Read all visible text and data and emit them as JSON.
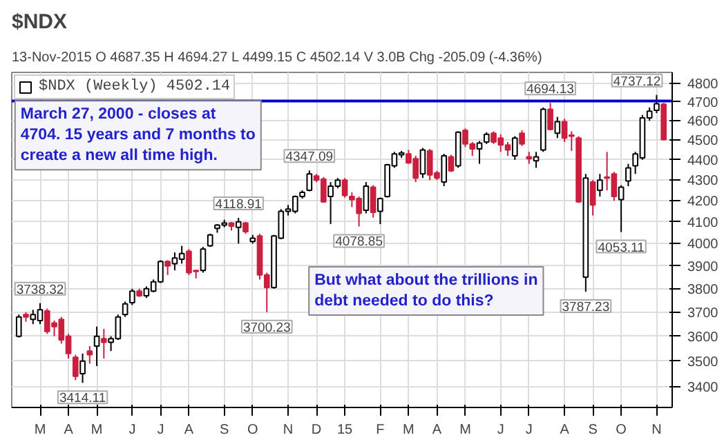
{
  "chart_data": {
    "type": "candlestick",
    "title": "$NDX",
    "subtitle": "13-Nov-2015   O 4687.35  H 4694.27  L 4499.15  C 4502.14  V 3.0B  Chg -205.09 (-4.36%)",
    "categories": [
      null,
      null,
      null,
      "M",
      null,
      null,
      null,
      "A",
      null,
      null,
      null,
      "M",
      null,
      null,
      null,
      null,
      "J",
      null,
      null,
      null,
      "J",
      null,
      null,
      null,
      "A",
      null,
      null,
      null,
      null,
      "S",
      null,
      null,
      null,
      "O",
      null,
      null,
      null,
      null,
      "N",
      null,
      null,
      null,
      "D",
      null,
      null,
      null,
      "15",
      null,
      null,
      null,
      null,
      "F",
      null,
      null,
      null,
      "M",
      null,
      null,
      null,
      "A",
      null,
      null,
      null,
      "M",
      null,
      null,
      null,
      null,
      "J",
      null,
      null,
      null,
      "J",
      null,
      null,
      null,
      null,
      "A",
      null,
      null,
      null,
      "S",
      null,
      null,
      null,
      "O",
      null,
      null,
      null,
      null,
      "N",
      null
    ],
    "series": [
      {
        "name": "$NDX (Weekly) 4502.14",
        "colors": [
          "#ffffff",
          "#cc1f3f",
          "#ffffff",
          "#ffffff",
          "#cc1f3f",
          "#cc1f3f",
          "#cc1f3f",
          "#cc1f3f",
          "#cc1f3f",
          "#ffffff",
          "#cc1f3f",
          "#ffffff",
          "#cc1f3f",
          "#ffffff",
          "#ffffff",
          "#ffffff",
          "#ffffff",
          "#cc1f3f",
          "#ffffff",
          "#ffffff",
          "#ffffff",
          "#cc1f3f",
          "#ffffff",
          "#ffffff",
          "#cc1f3f",
          "#cc1f3f",
          "#ffffff",
          "#ffffff",
          "#ffffff",
          "#ffffff",
          "#cc1f3f",
          "#ffffff",
          "#cc1f3f",
          "#ffffff",
          "#cc1f3f",
          "#cc1f3f",
          "#ffffff",
          "#ffffff",
          "#ffffff",
          "#ffffff",
          "#ffffff",
          "#ffffff",
          "#cc1f3f",
          "#cc1f3f",
          "#ffffff",
          "#ffffff",
          "#cc1f3f",
          "#cc1f3f",
          "#cc1f3f",
          "#ffffff",
          "#cc1f3f",
          "#ffffff",
          "#ffffff",
          "#ffffff",
          "#ffffff",
          "#cc1f3f",
          "#cc1f3f",
          "#ffffff",
          "#cc1f3f",
          "#cc1f3f",
          "#ffffff",
          "#cc1f3f",
          "#ffffff",
          "#cc1f3f",
          "#cc1f3f",
          "#ffffff",
          "#ffffff",
          "#cc1f3f",
          "#cc1f3f",
          "#cc1f3f",
          "#ffffff",
          "#cc1f3f",
          "#cc1f3f",
          "#ffffff",
          "#ffffff",
          "#cc1f3f",
          "#ffffff",
          "#cc1f3f",
          "#cc1f3f",
          "#cc1f3f",
          "#ffffff",
          "#cc1f3f",
          "#ffffff",
          "#cc1f3f",
          "#cc1f3f",
          "#ffffff",
          "#ffffff",
          "#ffffff",
          "#ffffff",
          "#ffffff",
          "#ffffff",
          "#cc1f3f"
        ],
        "ohlc": [
          [
            3600,
            3690,
            3595,
            3680
          ],
          [
            3690,
            3700,
            3660,
            3680
          ],
          [
            3670,
            3710,
            3650,
            3690
          ],
          [
            3665,
            3738.32,
            3650,
            3710
          ],
          [
            3705,
            3715,
            3610,
            3620
          ],
          [
            3655,
            3665,
            3600,
            3640
          ],
          [
            3670,
            3680,
            3570,
            3585
          ],
          [
            3600,
            3610,
            3510,
            3530
          ],
          [
            3515,
            3525,
            3425,
            3440
          ],
          [
            3450,
            3530,
            3414.11,
            3500
          ],
          [
            3540,
            3560,
            3490,
            3525
          ],
          [
            3560,
            3640,
            3480,
            3600
          ],
          [
            3590,
            3630,
            3510,
            3575
          ],
          [
            3575,
            3600,
            3540,
            3590
          ],
          [
            3590,
            3690,
            3585,
            3680
          ],
          [
            3690,
            3745,
            3680,
            3735
          ],
          [
            3740,
            3800,
            3730,
            3790
          ],
          [
            3790,
            3800,
            3765,
            3770
          ],
          [
            3770,
            3810,
            3760,
            3800
          ],
          [
            3790,
            3840,
            3785,
            3830
          ],
          [
            3830,
            3925,
            3825,
            3920
          ],
          [
            3920,
            3925,
            3860,
            3900
          ],
          [
            3910,
            3960,
            3880,
            3935
          ],
          [
            3930,
            3990,
            3910,
            3955
          ],
          [
            3965,
            3975,
            3860,
            3870
          ],
          [
            3880,
            3880,
            3845,
            3875
          ],
          [
            3880,
            3985,
            3870,
            3975
          ],
          [
            3990,
            4045,
            3985,
            4040
          ],
          [
            4070,
            4090,
            4050,
            4085
          ],
          [
            4085,
            4110,
            4075,
            4095
          ],
          [
            4095,
            4100,
            4060,
            4080
          ],
          [
            4075,
            4118.91,
            4000,
            4100
          ],
          [
            4095,
            4100,
            4045,
            4055
          ],
          [
            4010,
            4040,
            4000,
            4025
          ],
          [
            4035,
            4045,
            3840,
            3860
          ],
          [
            3860,
            3870,
            3700.23,
            3805
          ],
          [
            3805,
            4040,
            3800,
            4035
          ],
          [
            4025,
            4160,
            4020,
            4150
          ],
          [
            4150,
            4180,
            4130,
            4160
          ],
          [
            4150,
            4225,
            4140,
            4220
          ],
          [
            4220,
            4250,
            4210,
            4240
          ],
          [
            4250,
            4347.09,
            4245,
            4330
          ],
          [
            4320,
            4330,
            4290,
            4300
          ],
          [
            4305,
            4315,
            4190,
            4195
          ],
          [
            4220,
            4290,
            4090,
            4270
          ],
          [
            4270,
            4310,
            4260,
            4300
          ],
          [
            4300,
            4310,
            4215,
            4225
          ],
          [
            4220,
            4240,
            4170,
            4205
          ],
          [
            4210,
            4220,
            4078.85,
            4140
          ],
          [
            4155,
            4290,
            4140,
            4270
          ],
          [
            4265,
            4275,
            4120,
            4145
          ],
          [
            4150,
            4215,
            4090,
            4210
          ],
          [
            4220,
            4380,
            4215,
            4375
          ],
          [
            4370,
            4440,
            4360,
            4430
          ],
          [
            4425,
            4445,
            4410,
            4435
          ],
          [
            4430,
            4450,
            4380,
            4385
          ],
          [
            4405,
            4420,
            4290,
            4310
          ],
          [
            4330,
            4460,
            4310,
            4450
          ],
          [
            4445,
            4455,
            4300,
            4325
          ],
          [
            4335,
            4345,
            4300,
            4310
          ],
          [
            4290,
            4430,
            4270,
            4420
          ],
          [
            4415,
            4425,
            4340,
            4345
          ],
          [
            4370,
            4545,
            4360,
            4540
          ],
          [
            4550,
            4560,
            4465,
            4480
          ],
          [
            4480,
            4490,
            4420,
            4455
          ],
          [
            4455,
            4495,
            4380,
            4485
          ],
          [
            4490,
            4540,
            4480,
            4530
          ],
          [
            4535,
            4545,
            4480,
            4490
          ],
          [
            4510,
            4530,
            4440,
            4475
          ],
          [
            4475,
            4490,
            4420,
            4450
          ],
          [
            4420,
            4520,
            4400,
            4510
          ],
          [
            4535,
            4550,
            4470,
            4480
          ],
          [
            4415,
            4440,
            4380,
            4405
          ],
          [
            4395,
            4440,
            4360,
            4415
          ],
          [
            4450,
            4670,
            4440,
            4660
          ],
          [
            4660,
            4694.13,
            4550,
            4555
          ],
          [
            4535,
            4620,
            4510,
            4595
          ],
          [
            4595,
            4610,
            4490,
            4510
          ],
          [
            4525,
            4545,
            4445,
            4520
          ],
          [
            4510,
            4520,
            4190,
            4195
          ],
          [
            3850,
            4330,
            3787.23,
            4310
          ],
          [
            4290,
            4300,
            4130,
            4180
          ],
          [
            4250,
            4330,
            4220,
            4300
          ],
          [
            4315,
            4440,
            4250,
            4310
          ],
          [
            4330,
            4340,
            4200,
            4220
          ],
          [
            4205,
            4275,
            4053.11,
            4265
          ],
          [
            4295,
            4380,
            4270,
            4360
          ],
          [
            4370,
            4440,
            4330,
            4430
          ],
          [
            4410,
            4630,
            4400,
            4615
          ],
          [
            4615,
            4670,
            4600,
            4650
          ],
          [
            4655,
            4737.12,
            4640,
            4690
          ],
          [
            4687.35,
            4694.27,
            4499.15,
            4502.14
          ]
        ]
      }
    ],
    "ylim": [
      3320,
      4860
    ],
    "yticks": [
      3400,
      3500,
      3600,
      3700,
      3800,
      3900,
      4000,
      4100,
      4200,
      4300,
      4400,
      4500,
      4600,
      4700,
      4800
    ],
    "log": true,
    "grid": true,
    "legend": "top left",
    "ref_lines": [
      {
        "axis": "y",
        "value": 4704,
        "color": "#0000cc"
      }
    ],
    "annotations": [
      "March 27, 2000 - closes at 4704. 15 years and 7 months to create a new all time high.",
      "But what about the trillions in debt needed to do this?",
      {
        "text": "3738.32",
        "y": 3738.32
      },
      {
        "text": "3414.11",
        "y": 3414.11
      },
      {
        "text": "4118.91",
        "y": 4118.91
      },
      {
        "text": "3700.23",
        "y": 3700.23
      },
      {
        "text": "4347.09",
        "y": 4347.09
      },
      {
        "text": "4078.85",
        "y": 4078.85
      },
      {
        "text": "4694.13",
        "y": 4694.13
      },
      {
        "text": "3787.23",
        "y": 3787.23
      },
      {
        "text": "4053.11",
        "y": 4053.11
      },
      {
        "text": "4737.12",
        "y": 4737.12
      }
    ]
  }
}
